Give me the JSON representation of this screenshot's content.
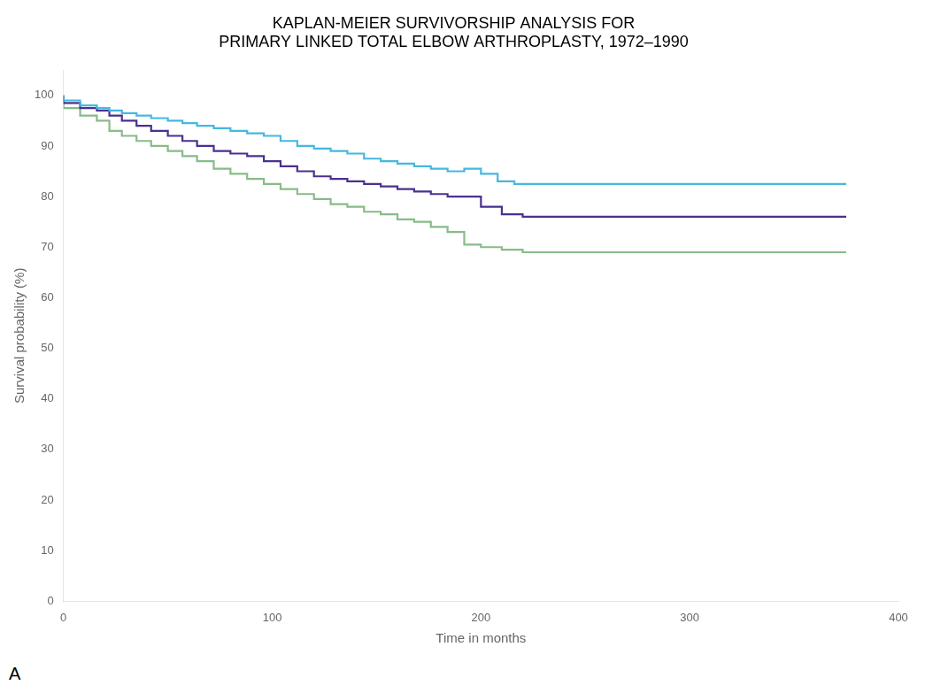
{
  "chart_data": {
    "type": "step",
    "title": [
      "KAPLAN-MEIER SURVIVORSHIP ANALYSIS FOR",
      "PRIMARY LINKED TOTAL ELBOW ARTHROPLASTY, 1972–1990"
    ],
    "xlabel": "Time in months",
    "ylabel": "Survival probability (%)",
    "annotations": [
      "A"
    ],
    "xlim": [
      0,
      400
    ],
    "ylim": [
      0,
      105
    ],
    "xticks": [
      0,
      100,
      200,
      300,
      400
    ],
    "yticks": [
      0,
      10,
      20,
      30,
      40,
      50,
      60,
      70,
      80,
      90,
      100
    ],
    "grid": false,
    "series": [
      {
        "color": "#45b8e0",
        "x": [
          0,
          8,
          16,
          22,
          28,
          35,
          42,
          50,
          57,
          64,
          72,
          80,
          88,
          96,
          104,
          112,
          120,
          128,
          136,
          144,
          152,
          160,
          168,
          176,
          184,
          192,
          200,
          208,
          216,
          224,
          375
        ],
        "values": [
          100,
          99.0,
          98.0,
          97.5,
          97.0,
          96.5,
          96.0,
          95.5,
          95.0,
          94.5,
          94.0,
          93.5,
          93.0,
          92.5,
          92.0,
          91.0,
          90.0,
          89.5,
          89.0,
          88.5,
          87.5,
          87.0,
          86.5,
          86.0,
          85.5,
          85.0,
          85.5,
          84.5,
          83.0,
          82.5,
          82.5
        ]
      },
      {
        "color": "#4b3090",
        "x": [
          0,
          8,
          16,
          22,
          28,
          35,
          42,
          50,
          57,
          64,
          72,
          80,
          88,
          96,
          104,
          112,
          120,
          128,
          136,
          144,
          152,
          160,
          168,
          176,
          184,
          192,
          200,
          210,
          220,
          230,
          375
        ],
        "values": [
          100,
          98.5,
          97.5,
          97.0,
          96.0,
          95.0,
          94.0,
          93.0,
          92.0,
          91.0,
          90.0,
          89.0,
          88.5,
          88.0,
          87.0,
          86.0,
          85.0,
          84.0,
          83.5,
          83.0,
          82.5,
          82.0,
          81.5,
          81.0,
          80.5,
          80.0,
          80.0,
          78.0,
          76.5,
          76.0,
          76.0
        ]
      },
      {
        "color": "#88bb88",
        "x": [
          0,
          8,
          16,
          22,
          28,
          35,
          42,
          50,
          57,
          64,
          72,
          80,
          88,
          96,
          104,
          112,
          120,
          128,
          136,
          144,
          152,
          160,
          168,
          176,
          184,
          192,
          200,
          210,
          220,
          230,
          375
        ],
        "values": [
          100,
          97.5,
          96.0,
          95.0,
          93.0,
          92.0,
          91.0,
          90.0,
          89.0,
          88.0,
          87.0,
          85.5,
          84.5,
          83.5,
          82.5,
          81.5,
          80.5,
          79.5,
          78.5,
          78.0,
          77.0,
          76.5,
          75.5,
          75.0,
          74.0,
          73.0,
          70.5,
          70.0,
          69.5,
          69.0,
          69.0
        ]
      }
    ]
  }
}
